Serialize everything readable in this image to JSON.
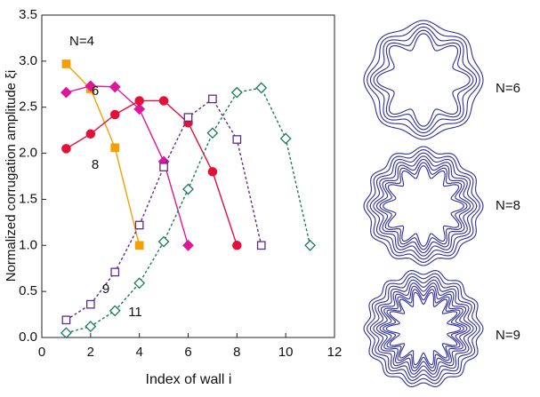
{
  "chart_data": {
    "type": "line",
    "x_label": "Index of wall i",
    "y_label": "Normalized corrugation amplitude ξi",
    "xlim": [
      0,
      12
    ],
    "xticks": [
      0,
      2,
      4,
      6,
      8,
      10,
      12
    ],
    "ylim": [
      0,
      3.5
    ],
    "yticks": [
      {
        "value": 0,
        "label": "0.0"
      },
      0.5,
      {
        "value": 1,
        "label": "1.0"
      },
      1.5,
      {
        "value": 2,
        "label": "2.0"
      },
      2.5,
      {
        "value": 3,
        "label": "3.0"
      },
      3.5
    ],
    "series": [
      {
        "name": "N=4",
        "color": "#f5a000",
        "marker": "square",
        "filled": true,
        "dashed": false,
        "x": [
          1,
          2,
          3,
          4
        ],
        "values": [
          2.97,
          2.7,
          2.06,
          1.0
        ]
      },
      {
        "name": "6",
        "color": "#e0169a",
        "marker": "diamond",
        "filled": true,
        "dashed": false,
        "x": [
          1,
          2,
          3,
          4,
          5,
          6
        ],
        "values": [
          2.66,
          2.73,
          2.72,
          2.48,
          1.91,
          1.0
        ]
      },
      {
        "name": "8",
        "color": "#e3103a",
        "marker": "circle",
        "filled": true,
        "dashed": false,
        "x": [
          1,
          2,
          3,
          4,
          5,
          6,
          7,
          8
        ],
        "values": [
          2.05,
          2.21,
          2.42,
          2.57,
          2.57,
          2.33,
          1.8,
          1.0
        ]
      },
      {
        "name": "9",
        "color": "#5b2d91",
        "marker": "square",
        "filled": false,
        "dashed": true,
        "x": [
          1,
          2,
          3,
          4,
          5,
          6,
          7,
          8,
          9
        ],
        "values": [
          0.19,
          0.36,
          0.71,
          1.22,
          1.85,
          2.39,
          2.59,
          2.15,
          1.0
        ]
      },
      {
        "name": "11",
        "color": "#1a7a5a",
        "marker": "diamond",
        "filled": false,
        "dashed": true,
        "x": [
          1,
          2,
          3,
          4,
          5,
          6,
          7,
          8,
          9,
          10,
          11
        ],
        "values": [
          0.05,
          0.12,
          0.29,
          0.59,
          1.04,
          1.61,
          2.22,
          2.66,
          2.71,
          2.16,
          1.0
        ]
      }
    ]
  },
  "insets": [
    {
      "label": "N=6"
    },
    {
      "label": "N=8"
    },
    {
      "label": "N=9"
    }
  ]
}
